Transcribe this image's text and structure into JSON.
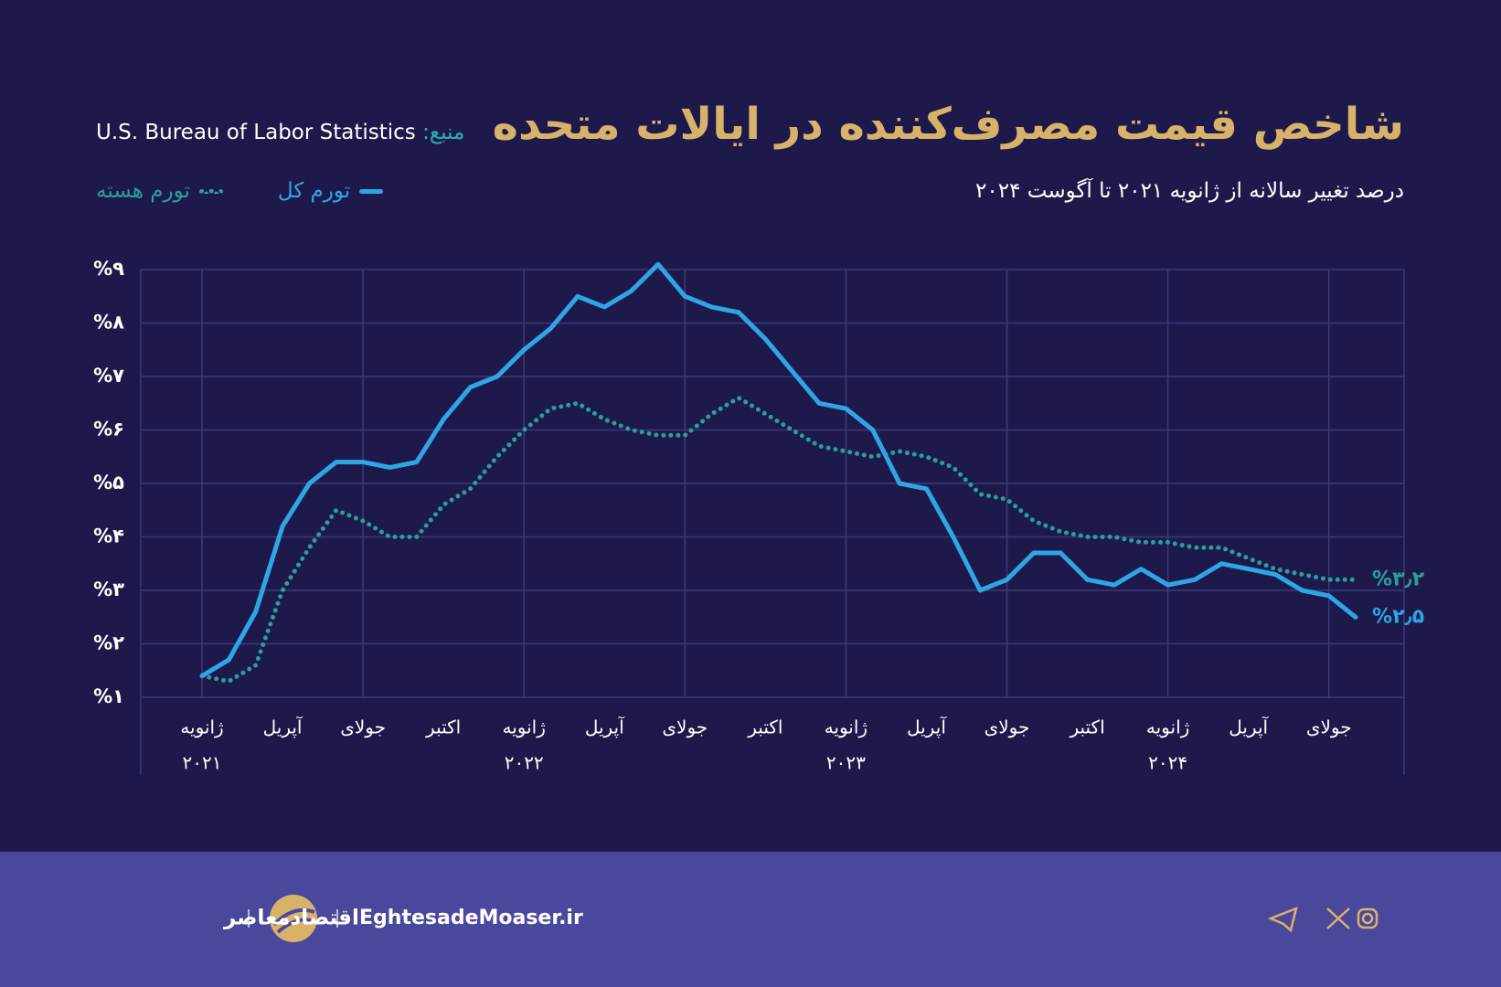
{
  "chart_data": {
    "type": "line",
    "title": "شاخص قیمت مصرف‌کننده در ایالات متحده",
    "subtitle": "درصد تغییر سالانه از ژانویه ۲۰۲۱ تا آگوست ۲۰۲۴",
    "source_label": "منبع:",
    "source": "U.S. Bureau of Labor Statistics",
    "categories": [
      "ژانویه",
      null,
      null,
      "آپریل",
      null,
      null,
      "جولای",
      null,
      null,
      "اکتبر",
      null,
      null,
      "ژانویه",
      null,
      null,
      "آپریل",
      null,
      null,
      "جولای",
      null,
      null,
      "اکتبر",
      null,
      null,
      "ژانویه",
      null,
      null,
      "آپریل",
      null,
      null,
      "جولای",
      null,
      null,
      "اکتبر",
      null,
      null,
      "ژانویه",
      null,
      null,
      "آپریل",
      null,
      null,
      "جولای",
      null
    ],
    "year_labels": [
      "۲۰۲۱",
      "۲۰۲۲",
      "۲۰۲۳",
      "۲۰۲۴"
    ],
    "series": [
      {
        "name": "تورم کل",
        "color": "#2ea6e6",
        "style": "solid",
        "values": [
          1.4,
          1.7,
          2.6,
          4.2,
          5.0,
          5.4,
          5.4,
          5.3,
          5.4,
          6.2,
          6.8,
          7.0,
          7.5,
          7.9,
          8.5,
          8.3,
          8.6,
          9.1,
          8.5,
          8.3,
          8.2,
          7.7,
          7.1,
          6.5,
          6.4,
          6.0,
          5.0,
          4.9,
          4.0,
          3.0,
          3.2,
          3.7,
          3.7,
          3.2,
          3.1,
          3.4,
          3.1,
          3.2,
          3.5,
          3.4,
          3.3,
          3.0,
          2.9,
          2.5
        ],
        "value_labels": [
          null,
          null,
          null,
          null,
          null,
          null,
          null,
          null,
          null,
          null,
          null,
          null,
          null,
          null,
          null,
          null,
          null,
          null,
          null,
          null,
          null,
          null,
          null,
          null,
          null,
          null,
          null,
          null,
          null,
          null,
          null,
          null,
          null,
          null,
          null,
          null,
          null,
          null,
          null,
          null,
          null,
          null,
          null,
          "%۲٫۵"
        ]
      },
      {
        "name": "تورم هسته",
        "color": "#2a9f9c",
        "style": "dotted",
        "values": [
          1.4,
          1.3,
          1.6,
          3.0,
          3.8,
          4.5,
          4.3,
          4.0,
          4.0,
          4.6,
          4.9,
          5.5,
          6.0,
          6.4,
          6.5,
          6.2,
          6.0,
          5.9,
          5.9,
          6.3,
          6.6,
          6.3,
          6.0,
          5.7,
          5.6,
          5.5,
          5.6,
          5.5,
          5.3,
          4.8,
          4.7,
          4.3,
          4.1,
          4.0,
          4.0,
          3.9,
          3.9,
          3.8,
          3.8,
          3.6,
          3.4,
          3.3,
          3.2,
          3.2
        ],
        "value_labels": [
          null,
          null,
          null,
          null,
          null,
          null,
          null,
          null,
          null,
          null,
          null,
          null,
          null,
          null,
          null,
          null,
          null,
          null,
          null,
          null,
          null,
          null,
          null,
          null,
          null,
          null,
          null,
          null,
          null,
          null,
          null,
          null,
          null,
          null,
          null,
          null,
          null,
          null,
          null,
          null,
          null,
          null,
          null,
          "%۳٫۲"
        ]
      }
    ],
    "ylim": [
      1,
      9
    ],
    "yticks": [
      {
        "value": 1,
        "label": "%۱"
      },
      {
        "value": 2,
        "label": "%۲"
      },
      {
        "value": 3,
        "label": "%۳"
      },
      {
        "value": 4,
        "label": "%۴"
      },
      {
        "value": 5,
        "label": "%۵"
      },
      {
        "value": 6,
        "label": "%۶"
      },
      {
        "value": 7,
        "label": "%۷"
      },
      {
        "value": 8,
        "label": "%۸"
      },
      {
        "value": 9,
        "label": "%۹"
      }
    ],
    "grid": true
  },
  "footer": {
    "brand": "اقتصادمعاصر",
    "website": "EghtesadeMoaser.ir"
  }
}
